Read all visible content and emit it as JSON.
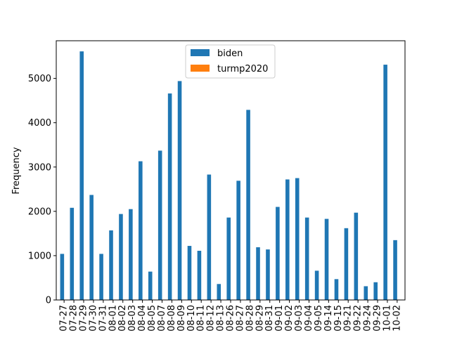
{
  "chart_data": {
    "type": "bar",
    "title": "",
    "xlabel": "",
    "ylabel": "Frequency",
    "ylim": [
      0,
      5850
    ],
    "yticks": [
      0,
      1000,
      2000,
      3000,
      4000,
      5000
    ],
    "ytick_labels": [
      "0",
      "1000",
      "2000",
      "3000",
      "4000",
      "5000"
    ],
    "categories": [
      "07-27",
      "07-28",
      "07-29",
      "07-30",
      "07-31",
      "08-01",
      "08-02",
      "08-03",
      "08-04",
      "08-05",
      "08-07",
      "08-08",
      "08-09",
      "08-10",
      "08-11",
      "08-12",
      "08-13",
      "08-26",
      "08-27",
      "08-28",
      "08-29",
      "08-31",
      "09-01",
      "09-02",
      "09-03",
      "09-04",
      "09-05",
      "09-14",
      "09-15",
      "09-21",
      "09-22",
      "09-24",
      "09-29",
      "10-01",
      "10-02"
    ],
    "series": [
      {
        "name": "biden",
        "color": "#1f77b4",
        "values": [
          1040,
          2080,
          5610,
          2370,
          1040,
          1570,
          1940,
          2050,
          3130,
          640,
          3370,
          4660,
          4940,
          1220,
          1110,
          2830,
          360,
          1860,
          2690,
          4290,
          1190,
          1140,
          2100,
          2720,
          2750,
          1860,
          660,
          1830,
          470,
          1620,
          1970,
          310,
          400,
          5310,
          1350
        ]
      },
      {
        "name": "turmp2020",
        "color": "#ff7f0e",
        "values": [
          0,
          0,
          0,
          0,
          0,
          0,
          0,
          0,
          0,
          0,
          0,
          0,
          0,
          0,
          0,
          0,
          0,
          0,
          0,
          0,
          0,
          0,
          0,
          0,
          0,
          0,
          0,
          0,
          0,
          0,
          0,
          0,
          0,
          0,
          0
        ]
      }
    ],
    "legend": {
      "position": "top-center",
      "entries": [
        "biden",
        "turmp2020"
      ]
    },
    "grid": false
  }
}
